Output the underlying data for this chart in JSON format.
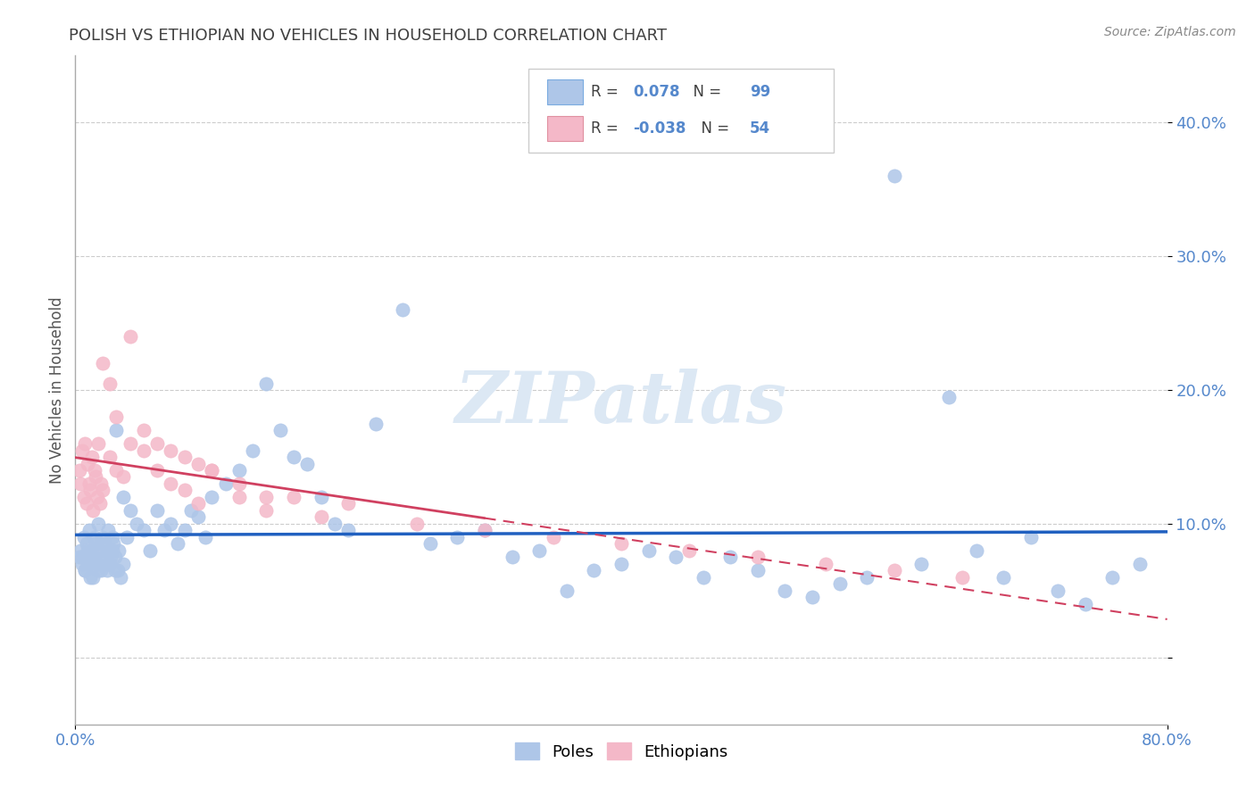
{
  "title": "POLISH VS ETHIOPIAN NO VEHICLES IN HOUSEHOLD CORRELATION CHART",
  "source": "Source: ZipAtlas.com",
  "ylabel": "No Vehicles in Household",
  "ytick_vals": [
    0.0,
    10.0,
    20.0,
    30.0,
    40.0
  ],
  "xlim": [
    0.0,
    80.0
  ],
  "ylim": [
    -5.0,
    45.0
  ],
  "poles_R": "0.078",
  "poles_N": "99",
  "ethiopians_R": "-0.038",
  "ethiopians_N": "54",
  "poles_color": "#aec6e8",
  "ethiopians_color": "#f4b8c8",
  "poles_line_color": "#2060c0",
  "ethiopians_line_color": "#d04060",
  "watermark_color": "#dce8f4",
  "background_color": "#ffffff",
  "grid_color": "#cccccc",
  "tick_label_color": "#5588cc",
  "title_color": "#404040",
  "source_color": "#888888",
  "legend_text_color": "#404040",
  "legend_value_color": "#5588cc",
  "poles_x": [
    0.4,
    0.5,
    0.6,
    0.7,
    0.8,
    0.9,
    1.0,
    1.1,
    1.2,
    1.3,
    1.4,
    1.5,
    1.6,
    1.7,
    1.8,
    1.9,
    2.0,
    2.1,
    2.2,
    2.3,
    2.4,
    2.5,
    2.6,
    2.7,
    2.8,
    2.9,
    3.0,
    3.2,
    3.5,
    3.8,
    4.0,
    4.5,
    5.0,
    5.5,
    6.0,
    6.5,
    7.0,
    7.5,
    8.0,
    8.5,
    9.0,
    9.5,
    10.0,
    11.0,
    12.0,
    13.0,
    14.0,
    15.0,
    16.0,
    17.0,
    18.0,
    19.0,
    20.0,
    22.0,
    24.0,
    26.0,
    28.0,
    30.0,
    32.0,
    34.0,
    36.0,
    38.0,
    40.0,
    42.0,
    44.0,
    46.0,
    48.0,
    50.0,
    52.0,
    54.0,
    56.0,
    58.0,
    60.0,
    62.0,
    64.0,
    66.0,
    68.0,
    70.0,
    72.0,
    74.0,
    76.0,
    78.0,
    0.3,
    0.5,
    0.7,
    0.9,
    1.1,
    1.3,
    1.5,
    1.7,
    1.9,
    2.1,
    2.3,
    2.5,
    2.7,
    2.9,
    3.1,
    3.3,
    3.5
  ],
  "poles_y": [
    8.0,
    7.5,
    9.0,
    6.5,
    8.5,
    7.0,
    9.5,
    6.0,
    8.0,
    7.5,
    9.0,
    8.5,
    7.0,
    10.0,
    8.0,
    6.5,
    9.0,
    7.5,
    8.5,
    7.0,
    9.5,
    8.0,
    7.5,
    9.0,
    8.5,
    6.5,
    17.0,
    8.0,
    12.0,
    9.0,
    11.0,
    10.0,
    9.5,
    8.0,
    11.0,
    9.5,
    10.0,
    8.5,
    9.5,
    11.0,
    10.5,
    9.0,
    12.0,
    13.0,
    14.0,
    15.5,
    20.5,
    17.0,
    15.0,
    14.5,
    12.0,
    10.0,
    9.5,
    17.5,
    26.0,
    8.5,
    9.0,
    9.5,
    7.5,
    8.0,
    5.0,
    6.5,
    7.0,
    8.0,
    7.5,
    6.0,
    7.5,
    6.5,
    5.0,
    4.5,
    5.5,
    6.0,
    36.0,
    7.0,
    19.5,
    8.0,
    6.0,
    9.0,
    5.0,
    4.0,
    6.0,
    7.0,
    7.5,
    7.0,
    6.5,
    8.0,
    7.5,
    6.0,
    7.0,
    6.5,
    8.5,
    7.5,
    6.5,
    7.0,
    8.0,
    7.5,
    6.5,
    6.0,
    7.0
  ],
  "eth_x": [
    0.3,
    0.4,
    0.5,
    0.6,
    0.7,
    0.8,
    0.9,
    1.0,
    1.1,
    1.2,
    1.3,
    1.4,
    1.5,
    1.6,
    1.7,
    1.8,
    1.9,
    2.0,
    2.5,
    3.0,
    3.5,
    4.0,
    5.0,
    6.0,
    7.0,
    8.0,
    9.0,
    10.0,
    12.0,
    14.0,
    16.0,
    18.0,
    20.0,
    25.0,
    30.0,
    35.0,
    40.0,
    45.0,
    50.0,
    55.0,
    60.0,
    65.0,
    2.0,
    2.5,
    3.0,
    4.0,
    5.0,
    6.0,
    7.0,
    8.0,
    9.0,
    10.0,
    12.0,
    14.0
  ],
  "eth_y": [
    14.0,
    13.0,
    15.5,
    12.0,
    16.0,
    11.5,
    14.5,
    13.0,
    12.5,
    15.0,
    11.0,
    14.0,
    13.5,
    12.0,
    16.0,
    11.5,
    13.0,
    12.5,
    15.0,
    14.0,
    13.5,
    16.0,
    15.5,
    14.0,
    13.0,
    12.5,
    11.5,
    14.0,
    12.0,
    11.0,
    12.0,
    10.5,
    11.5,
    10.0,
    9.5,
    9.0,
    8.5,
    8.0,
    7.5,
    7.0,
    6.5,
    6.0,
    22.0,
    20.5,
    18.0,
    24.0,
    17.0,
    16.0,
    15.5,
    15.0,
    14.5,
    14.0,
    13.0,
    12.0
  ]
}
